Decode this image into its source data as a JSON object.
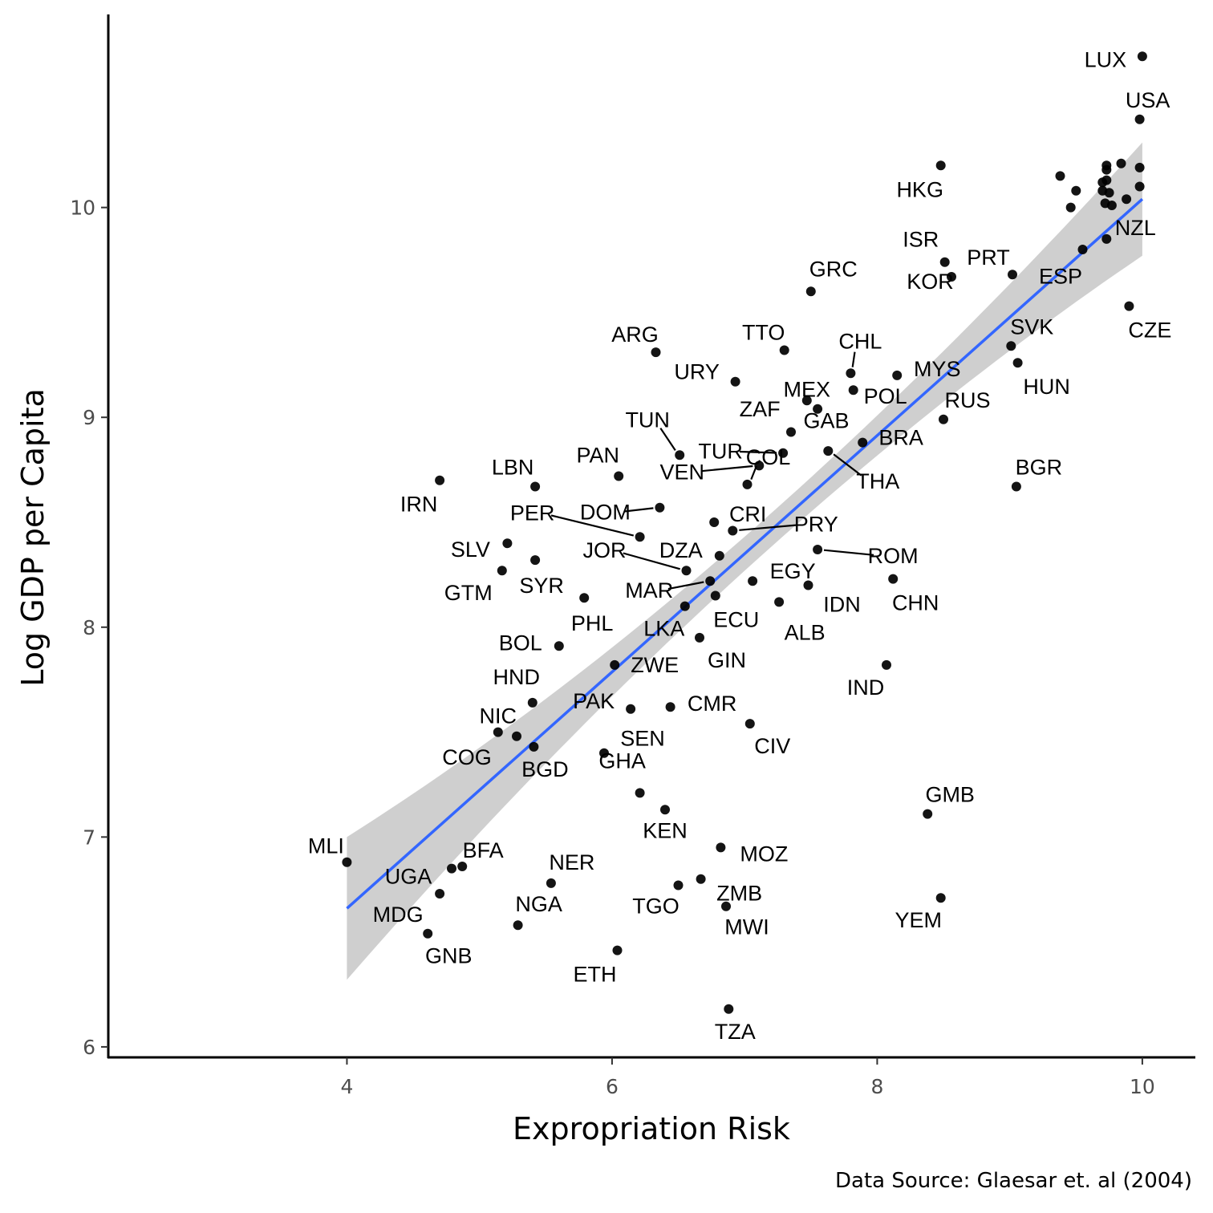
{
  "chart_data": {
    "type": "scatter",
    "xlabel": "Expropriation Risk",
    "ylabel": "Log GDP per Capita",
    "caption": "Data Source: Glaesar et. al (2004)",
    "xlim": [
      2.2,
      10.4
    ],
    "ylim": [
      5.95,
      10.92
    ],
    "xticks": [
      4,
      6,
      8,
      10
    ],
    "yticks": [
      6,
      7,
      8,
      9,
      10
    ],
    "grid": false,
    "colors": {
      "points": "#000000",
      "fit_line": "#3366FF",
      "confidence_band": "#cccccc",
      "axis": "#000000"
    },
    "fit": {
      "method": "linear",
      "x_range": [
        4.0,
        10.0
      ],
      "y_at_start": 6.66,
      "y_at_end": 10.04,
      "band_halfwidth_at_start": 0.34,
      "band_halfwidth_at_end": 0.27,
      "band_halfwidth_at_mean": 0.08,
      "x_mean": 7.2
    },
    "points": [
      {
        "code": "LUX",
        "x": 10.0,
        "y": 10.72
      },
      {
        "code": "USA",
        "x": 9.98,
        "y": 10.42
      },
      {
        "code": "HKG",
        "x": 8.48,
        "y": 10.2
      },
      {
        "code": "NZL",
        "x": 9.73,
        "y": 9.85
      },
      {
        "code": "ISR",
        "x": 8.51,
        "y": 9.74
      },
      {
        "code": "PRT",
        "x": 8.56,
        "y": 9.67
      },
      {
        "code": "ESP",
        "x": 9.02,
        "y": 9.68
      },
      {
        "code": "KOR",
        "x": 9.55,
        "y": 9.8
      },
      {
        "code": "CZE",
        "x": 9.9,
        "y": 9.53
      },
      {
        "code": "GRC",
        "x": 7.5,
        "y": 9.6
      },
      {
        "code": "SVK",
        "x": 9.01,
        "y": 9.34
      },
      {
        "code": "HUN",
        "x": 9.06,
        "y": 9.26
      },
      {
        "code": "ARG",
        "x": 6.33,
        "y": 9.31
      },
      {
        "code": "TTO",
        "x": 7.3,
        "y": 9.32
      },
      {
        "code": "CHL",
        "x": 7.8,
        "y": 9.21
      },
      {
        "code": "MYS",
        "x": 8.15,
        "y": 9.2
      },
      {
        "code": "URY",
        "x": 6.93,
        "y": 9.17
      },
      {
        "code": "MEX",
        "x": 7.47,
        "y": 9.08
      },
      {
        "code": "POL",
        "x": 7.82,
        "y": 9.13
      },
      {
        "code": "RUS",
        "x": 8.5,
        "y": 8.99
      },
      {
        "code": "ZAF",
        "x": 7.55,
        "y": 9.04
      },
      {
        "code": "TUN",
        "x": 6.51,
        "y": 8.82
      },
      {
        "code": "GAB",
        "x": 7.35,
        "y": 8.93
      },
      {
        "code": "BRA",
        "x": 7.89,
        "y": 8.88
      },
      {
        "code": "TUR",
        "x": 7.29,
        "y": 8.83
      },
      {
        "code": "THA",
        "x": 7.63,
        "y": 8.84
      },
      {
        "code": "BGR",
        "x": 9.05,
        "y": 8.67
      },
      {
        "code": "LBN",
        "x": 5.42,
        "y": 8.67
      },
      {
        "code": "PAN",
        "x": 6.05,
        "y": 8.72
      },
      {
        "code": "IRN",
        "x": 4.7,
        "y": 8.7
      },
      {
        "code": "VEN",
        "x": 7.11,
        "y": 8.77
      },
      {
        "code": "COL",
        "x": 7.02,
        "y": 8.68
      },
      {
        "code": "DOM",
        "x": 6.36,
        "y": 8.57
      },
      {
        "code": "PER",
        "x": 6.21,
        "y": 8.43
      },
      {
        "code": "CRI",
        "x": 6.77,
        "y": 8.5
      },
      {
        "code": "PRY",
        "x": 6.91,
        "y": 8.46
      },
      {
        "code": "SLV",
        "x": 5.21,
        "y": 8.4
      },
      {
        "code": "JOR",
        "x": 6.56,
        "y": 8.27
      },
      {
        "code": "DZA",
        "x": 6.81,
        "y": 8.34
      },
      {
        "code": "ROM",
        "x": 7.55,
        "y": 8.37
      },
      {
        "code": "EGY",
        "x": 7.06,
        "y": 8.22
      },
      {
        "code": "MAR",
        "x": 6.74,
        "y": 8.22
      },
      {
        "code": "GTM",
        "x": 5.17,
        "y": 8.27
      },
      {
        "code": "SYR",
        "x": 5.42,
        "y": 8.32
      },
      {
        "code": "CHN",
        "x": 8.12,
        "y": 8.23
      },
      {
        "code": "IDN",
        "x": 7.48,
        "y": 8.2
      },
      {
        "code": "PHL",
        "x": 5.79,
        "y": 8.14
      },
      {
        "code": "ECU",
        "x": 6.78,
        "y": 8.15
      },
      {
        "code": "LKA",
        "x": 6.55,
        "y": 8.1
      },
      {
        "code": "ALB",
        "x": 7.26,
        "y": 8.12
      },
      {
        "code": "BOL",
        "x": 5.6,
        "y": 7.91
      },
      {
        "code": "GIN",
        "x": 6.66,
        "y": 7.95
      },
      {
        "code": "ZWE",
        "x": 6.02,
        "y": 7.82
      },
      {
        "code": "IND",
        "x": 8.07,
        "y": 7.82
      },
      {
        "code": "HND",
        "x": 5.4,
        "y": 7.64
      },
      {
        "code": "PAK",
        "x": 6.14,
        "y": 7.61
      },
      {
        "code": "CMR",
        "x": 6.44,
        "y": 7.62
      },
      {
        "code": "NIC",
        "x": 5.14,
        "y": 7.5
      },
      {
        "code": "CIV",
        "x": 7.04,
        "y": 7.54
      },
      {
        "code": "COG",
        "x": 5.28,
        "y": 7.48
      },
      {
        "code": "BGD",
        "x": 5.41,
        "y": 7.43
      },
      {
        "code": "SEN",
        "x": 5.94,
        "y": 7.4
      },
      {
        "code": "GHA",
        "x": 6.21,
        "y": 7.21
      },
      {
        "code": "KEN",
        "x": 6.4,
        "y": 7.13
      },
      {
        "code": "GMB",
        "x": 8.38,
        "y": 7.11
      },
      {
        "code": "MLI",
        "x": 4.0,
        "y": 6.88
      },
      {
        "code": "BFA",
        "x": 4.87,
        "y": 6.86
      },
      {
        "code": "MOZ",
        "x": 6.82,
        "y": 6.95
      },
      {
        "code": "UGA",
        "x": 4.79,
        "y": 6.85
      },
      {
        "code": "NER",
        "x": 5.54,
        "y": 6.78
      },
      {
        "code": "ZMB",
        "x": 6.67,
        "y": 6.8
      },
      {
        "code": "TGO",
        "x": 6.5,
        "y": 6.77
      },
      {
        "code": "MDG",
        "x": 4.7,
        "y": 6.73
      },
      {
        "code": "YEM",
        "x": 8.48,
        "y": 6.71
      },
      {
        "code": "NGA",
        "x": 5.29,
        "y": 6.58
      },
      {
        "code": "MWI",
        "x": 6.86,
        "y": 6.67
      },
      {
        "code": "GNB",
        "x": 4.61,
        "y": 6.54
      },
      {
        "code": "ETH",
        "x": 6.04,
        "y": 6.46
      },
      {
        "code": "TZA",
        "x": 6.88,
        "y": 6.18
      },
      {
        "code": "",
        "x": 9.38,
        "y": 10.15
      },
      {
        "code": "",
        "x": 9.73,
        "y": 10.2
      },
      {
        "code": "",
        "x": 9.73,
        "y": 10.18
      },
      {
        "code": "",
        "x": 9.73,
        "y": 10.13
      },
      {
        "code": "",
        "x": 9.84,
        "y": 10.21
      },
      {
        "code": "",
        "x": 9.98,
        "y": 10.19
      },
      {
        "code": "",
        "x": 9.5,
        "y": 10.08
      },
      {
        "code": "",
        "x": 9.7,
        "y": 10.12
      },
      {
        "code": "",
        "x": 9.7,
        "y": 10.08
      },
      {
        "code": "",
        "x": 9.75,
        "y": 10.07
      },
      {
        "code": "",
        "x": 9.98,
        "y": 10.1
      },
      {
        "code": "",
        "x": 9.46,
        "y": 10.0
      },
      {
        "code": "",
        "x": 9.72,
        "y": 10.02
      },
      {
        "code": "",
        "x": 9.77,
        "y": 10.01
      },
      {
        "code": "",
        "x": 9.88,
        "y": 10.04
      }
    ]
  }
}
